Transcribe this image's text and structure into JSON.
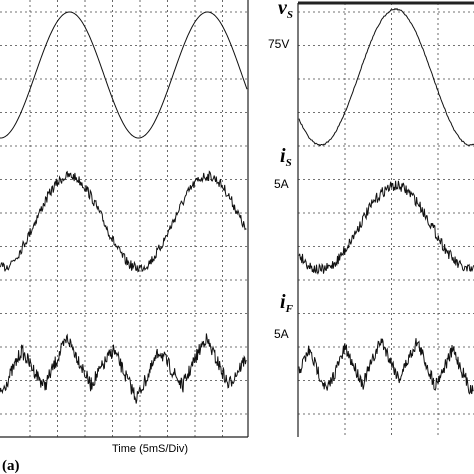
{
  "figure": {
    "time_label": "Time (5mS/Div)",
    "panel_label": "(a)",
    "traces": [
      {
        "symbol": "v",
        "subscript": "S",
        "scale": "75V"
      },
      {
        "symbol": "i",
        "subscript": "S",
        "scale": "5A"
      },
      {
        "symbol": "i",
        "subscript": "F",
        "scale": "5A"
      }
    ]
  }
}
